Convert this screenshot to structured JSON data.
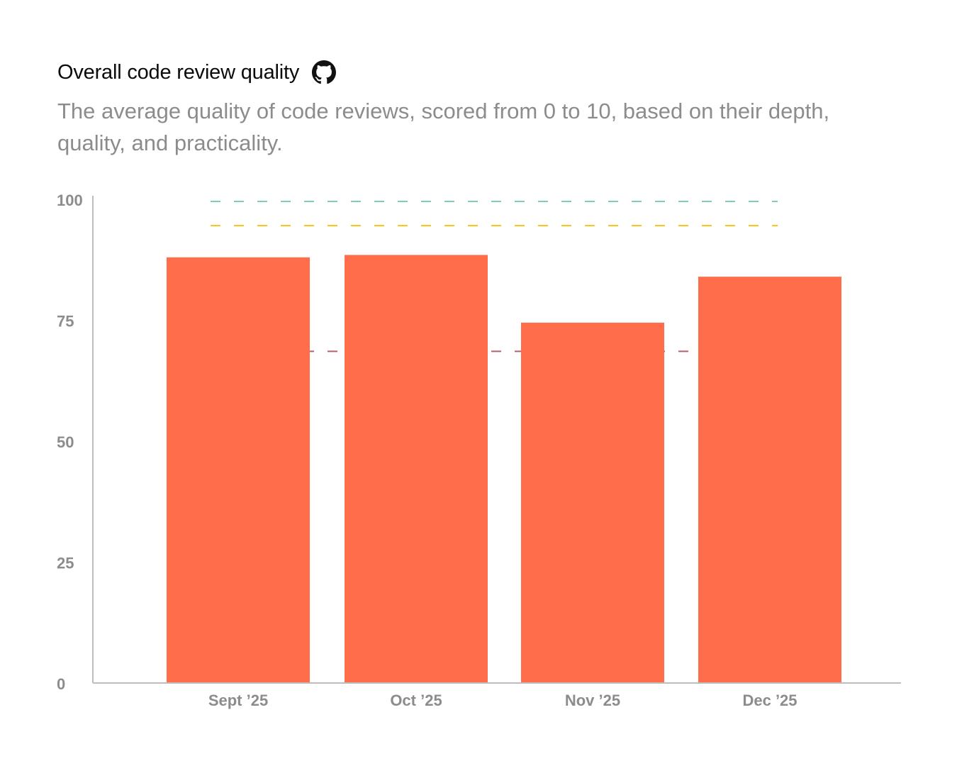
{
  "header": {
    "title": "Overall code review quality",
    "subtitle": "The average quality of code reviews, scored from 0 to 10, based on their depth, quality, and practicality."
  },
  "icons": {
    "title_icon": "github-icon"
  },
  "chart_data": {
    "type": "bar",
    "categories": [
      "Sept ’25",
      "Oct ’25",
      "Nov ’25",
      "Dec ’25"
    ],
    "values": [
      88,
      88.5,
      74.5,
      84
    ],
    "ylim": [
      0,
      100
    ],
    "yticks": [
      0,
      25,
      50,
      75,
      100
    ],
    "xlabel": "",
    "ylabel": "",
    "grid": false,
    "bar_color": "#ff6d4a",
    "reference_lines": [
      {
        "value": 100,
        "color": "#7fcfae"
      },
      {
        "value": 95,
        "color": "#f2c21b"
      },
      {
        "value": 69,
        "color": "#b5616d"
      }
    ]
  }
}
